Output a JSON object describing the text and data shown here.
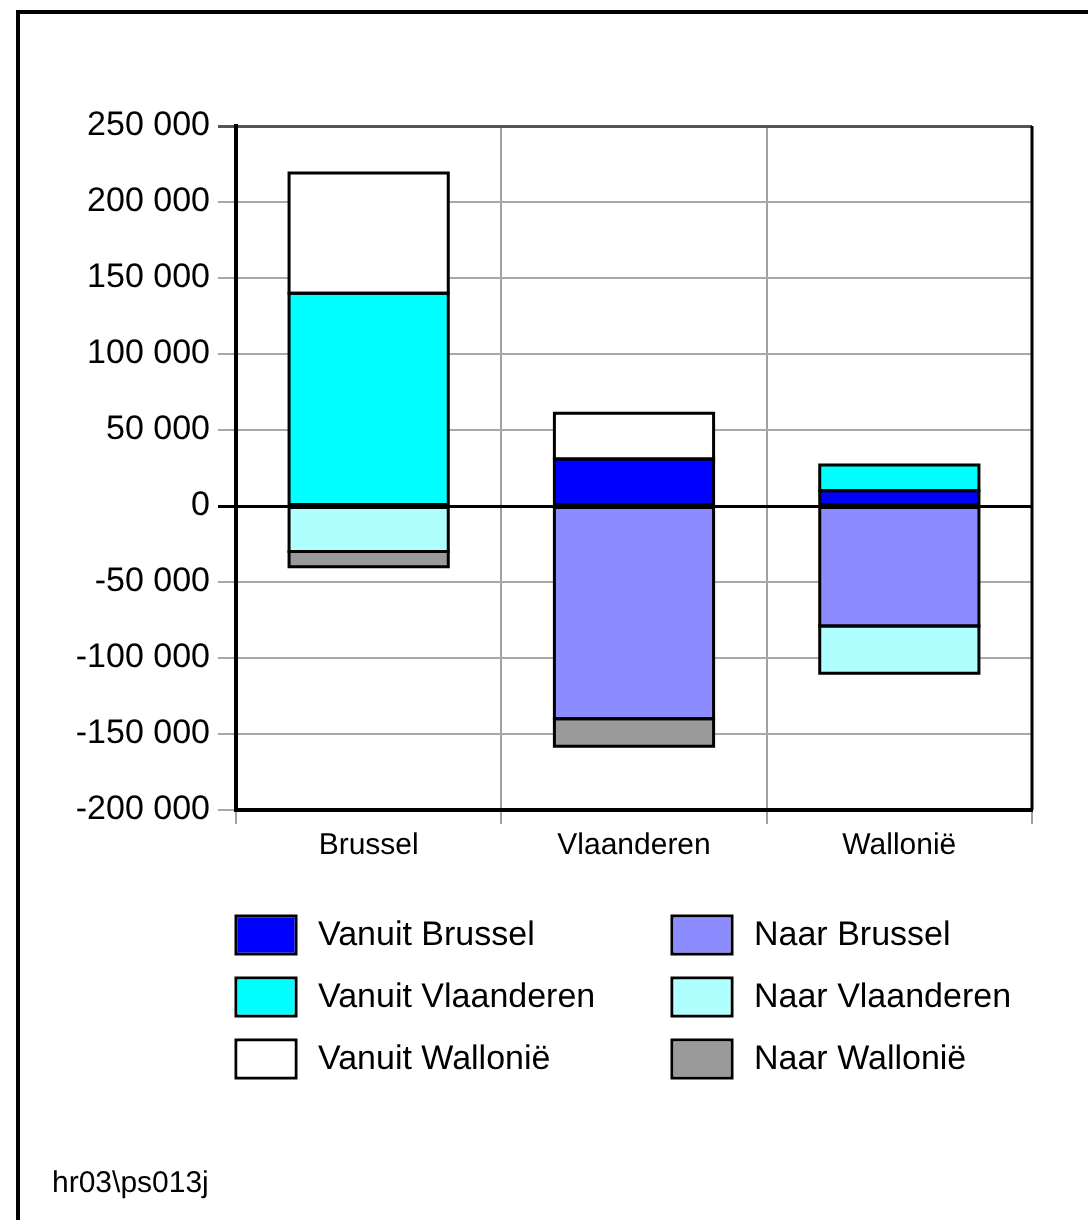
{
  "chart_data": {
    "type": "bar",
    "categories": [
      "Brussel",
      "Vlaanderen",
      "Wallonië"
    ],
    "stacked": true,
    "series": [
      {
        "name": "Vanuit Brussel",
        "color": "#0000ff",
        "values": [
          null,
          31000,
          10000
        ]
      },
      {
        "name": "Vanuit Vlaanderen",
        "color": "#00ffff",
        "values": [
          140000,
          null,
          17000
        ]
      },
      {
        "name": "Vanuit Wallonië",
        "color": "#ffffff",
        "values": [
          79000,
          30000,
          null
        ]
      },
      {
        "name": "Naar Brussel",
        "color": "#8c8cff",
        "values": [
          null,
          -140000,
          -79000
        ]
      },
      {
        "name": "Naar Vlaanderen",
        "color": "#b0ffff",
        "values": [
          -30000,
          null,
          -31000
        ]
      },
      {
        "name": "Naar Wallonië",
        "color": "#9a9a9a",
        "values": [
          -10000,
          -18000,
          null
        ]
      }
    ],
    "ylim": [
      -200000,
      250000
    ],
    "yticks": [
      {
        "value": -200000,
        "label": "-200 000"
      },
      {
        "value": -150000,
        "label": "-150 000"
      },
      {
        "value": -100000,
        "label": "-100 000"
      },
      {
        "value": -50000,
        "label": "-50 000"
      },
      0,
      {
        "value": 50000,
        "label": "50 000"
      },
      {
        "value": 100000,
        "label": "100 000"
      },
      {
        "value": 150000,
        "label": "150 000"
      },
      {
        "value": 200000,
        "label": "200 000"
      },
      {
        "value": 250000,
        "label": "250 000"
      }
    ],
    "grid": true,
    "legend": "bottom",
    "annotations": [
      "hr03\\ps013j"
    ]
  }
}
